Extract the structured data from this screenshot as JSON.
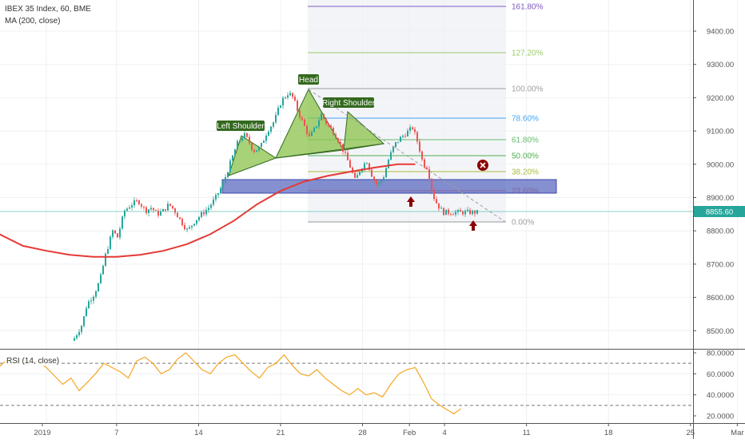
{
  "header": {
    "symbol": "IBEX 35 Index, 60, BME",
    "indicator": "MA (200, close)"
  },
  "rsi_header": "RSI (14, close)",
  "price_axis": {
    "ticks": [
      "9400.00",
      "9300.00",
      "9200.00",
      "9100.00",
      "9000.00",
      "8900.00",
      "8800.00",
      "8700.00",
      "8600.00",
      "8500.00"
    ],
    "current_price": "8855.60"
  },
  "rsi_axis": {
    "ticks": [
      "80.0000",
      "60.0000",
      "40.0000",
      "20.0000"
    ]
  },
  "time_axis": {
    "ticks": [
      "2019",
      "7",
      "14",
      "21",
      "28",
      "Feb",
      "4",
      "11",
      "18",
      "25",
      "Mar"
    ]
  },
  "fib_labels": [
    "161.80%",
    "127.20%",
    "100.00%",
    "78.60%",
    "61.80%",
    "50.00%",
    "38.20%",
    "23.60%",
    "0.00%"
  ],
  "pattern_labels": {
    "head": "Head",
    "left_shoulder": "Left Shoulder",
    "right_shoulder": "Right Shoulder"
  },
  "colors": {
    "up": "#26a69a",
    "down": "#ef5350",
    "ma": "#e53935",
    "rsi": "#f5a623",
    "zone": "#3f51b5",
    "pattern_fill": "#8bc34a",
    "fib_161": "#7e57c2",
    "fib_127": "#9ccc65",
    "fib_100": "#9e9e9e",
    "fib_786": "#42a5f5",
    "fib_618": "#66bb6a",
    "fib_50": "#4caf50",
    "fib_382": "#aabd3a",
    "fib_236": "#ef5350",
    "fib_0": "#9e9e9e",
    "marker": "#8b0000"
  },
  "chart_data": [
    {
      "type": "candlestick",
      "title": "IBEX 35 Index, 60, BME",
      "ylim": [
        8455,
        9480
      ],
      "series": [
        {
          "name": "IBEX 35 Index",
          "close_path": [
            [
              2.2,
              8470
            ],
            [
              3.0,
              8520
            ],
            [
              3.4,
              8580
            ],
            [
              4.0,
              8610
            ],
            [
              4.5,
              8650
            ],
            [
              5.0,
              8730
            ],
            [
              5.6,
              8800
            ],
            [
              6.0,
              8780
            ],
            [
              6.6,
              8860
            ],
            [
              7.2,
              8880
            ],
            [
              7.8,
              8890
            ],
            [
              8.4,
              8860
            ],
            [
              8.9,
              8870
            ],
            [
              9.4,
              8850
            ],
            [
              9.9,
              8860
            ],
            [
              10.4,
              8880
            ],
            [
              10.9,
              8860
            ],
            [
              11.4,
              8830
            ],
            [
              12.0,
              8800
            ],
            [
              12.6,
              8830
            ],
            [
              13.2,
              8850
            ],
            [
              13.8,
              8870
            ],
            [
              14.4,
              8900
            ],
            [
              15.0,
              8940
            ],
            [
              15.6,
              9000
            ],
            [
              16.2,
              9060
            ],
            [
              16.8,
              9090
            ],
            [
              17.2,
              9070
            ],
            [
              17.6,
              9040
            ],
            [
              18.2,
              9050
            ],
            [
              18.8,
              9100
            ],
            [
              19.4,
              9130
            ],
            [
              20.0,
              9190
            ],
            [
              20.6,
              9215
            ],
            [
              21.0,
              9200
            ],
            [
              21.4,
              9160
            ],
            [
              21.9,
              9120
            ],
            [
              22.4,
              9080
            ],
            [
              22.9,
              9110
            ],
            [
              23.4,
              9150
            ],
            [
              23.9,
              9120
            ],
            [
              24.4,
              9100
            ],
            [
              24.9,
              9070
            ],
            [
              25.3,
              9040
            ],
            [
              25.8,
              9000
            ],
            [
              26.3,
              8950
            ],
            [
              26.8,
              8990
            ],
            [
              27.3,
              9010
            ],
            [
              27.8,
              8960
            ],
            [
              28.2,
              8935
            ],
            [
              28.7,
              8960
            ],
            [
              29.2,
              9020
            ],
            [
              29.7,
              9060
            ],
            [
              30.2,
              9080
            ],
            [
              30.7,
              9095
            ],
            [
              31.2,
              9110
            ],
            [
              31.7,
              9060
            ],
            [
              32.1,
              9000
            ],
            [
              32.5,
              8990
            ],
            [
              32.9,
              8910
            ],
            [
              33.3,
              8880
            ],
            [
              33.8,
              8855.6
            ]
          ]
        },
        {
          "name": "MA (200, close)",
          "values": [
            [
              -10,
              8885
            ],
            [
              -8,
              8860
            ],
            [
              -6,
              8830
            ],
            [
              -4,
              8790
            ],
            [
              -2,
              8755
            ],
            [
              0,
              8740
            ],
            [
              2,
              8728
            ],
            [
              4,
              8722
            ],
            [
              6,
              8722
            ],
            [
              8,
              8728
            ],
            [
              10,
              8740
            ],
            [
              12,
              8760
            ],
            [
              14,
              8790
            ],
            [
              16,
              8830
            ],
            [
              18,
              8880
            ],
            [
              20,
              8920
            ],
            [
              22,
              8948
            ],
            [
              24,
              8965
            ],
            [
              26,
              8978
            ],
            [
              28,
              8990
            ],
            [
              30,
              9000
            ],
            [
              31.5,
              9000
            ]
          ]
        }
      ]
    },
    {
      "type": "line",
      "title": "RSI (14, close)",
      "ylim": [
        12,
        83
      ],
      "reference_lines": [
        30,
        70
      ],
      "series": [
        {
          "name": "RSI (14, close)",
          "values": [
            [
              -9,
              24
            ],
            [
              -8.3,
              45
            ],
            [
              -7.6,
              60
            ],
            [
              -6.9,
              50
            ],
            [
              -6.2,
              62
            ],
            [
              -5.5,
              48
            ],
            [
              -4.8,
              58
            ],
            [
              -4.1,
              66
            ],
            [
              -3.5,
              72
            ],
            [
              -2.8,
              70
            ],
            [
              -2.1,
              74
            ],
            [
              -1.4,
              70
            ],
            [
              -0.7,
              72
            ],
            [
              0,
              66
            ],
            [
              0.7,
              58
            ],
            [
              1.4,
              50
            ],
            [
              2.1,
              56
            ],
            [
              2.8,
              44
            ],
            [
              3.5,
              52
            ],
            [
              4.2,
              60
            ],
            [
              4.9,
              70
            ],
            [
              5.6,
              66
            ],
            [
              6.3,
              62
            ],
            [
              7.0,
              56
            ],
            [
              7.7,
              72
            ],
            [
              8.4,
              76
            ],
            [
              9.1,
              70
            ],
            [
              9.8,
              60
            ],
            [
              10.5,
              64
            ],
            [
              11.2,
              74
            ],
            [
              11.9,
              80
            ],
            [
              12.6,
              72
            ],
            [
              13.3,
              64
            ],
            [
              14.0,
              60
            ],
            [
              14.7,
              70
            ],
            [
              15.4,
              76
            ],
            [
              16.1,
              78
            ],
            [
              16.8,
              70
            ],
            [
              17.5,
              62
            ],
            [
              18.2,
              56
            ],
            [
              18.9,
              66
            ],
            [
              19.6,
              70
            ],
            [
              20.3,
              78
            ],
            [
              21.0,
              68
            ],
            [
              21.7,
              60
            ],
            [
              22.4,
              58
            ],
            [
              23.1,
              64
            ],
            [
              23.8,
              56
            ],
            [
              24.5,
              50
            ],
            [
              25.2,
              44
            ],
            [
              25.9,
              40
            ],
            [
              26.6,
              46
            ],
            [
              27.3,
              40
            ],
            [
              28.0,
              42
            ],
            [
              28.7,
              38
            ],
            [
              29.4,
              50
            ],
            [
              30.1,
              60
            ],
            [
              30.8,
              64
            ],
            [
              31.5,
              66
            ],
            [
              32.2,
              52
            ],
            [
              32.9,
              36
            ],
            [
              33.6,
              30
            ],
            [
              34.2,
              26
            ],
            [
              34.8,
              22
            ],
            [
              35.4,
              27
            ]
          ]
        }
      ]
    }
  ]
}
